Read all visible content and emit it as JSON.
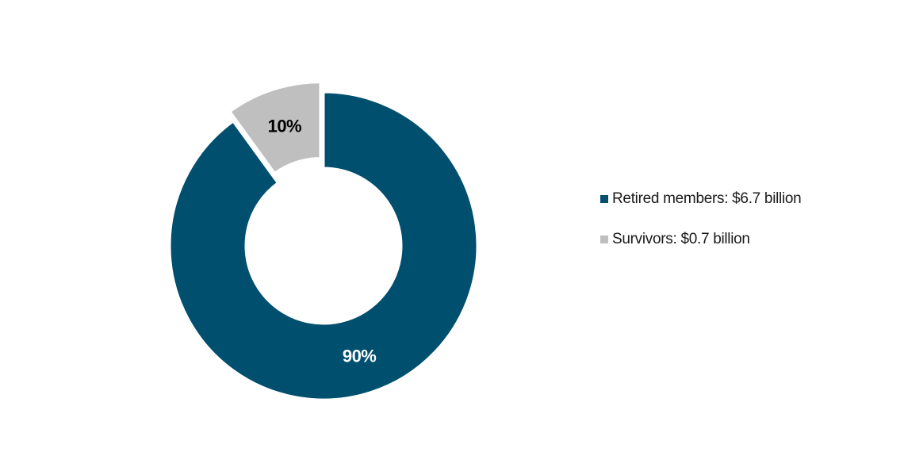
{
  "chart_data": {
    "type": "pie",
    "title": "",
    "series": [
      {
        "name": "Retired members: $6.7 billion",
        "value": 90,
        "label": "90%",
        "color": "#004f6e",
        "label_color": "#ffffff",
        "exploded": false
      },
      {
        "name": "Survivors: $0.7 billion",
        "value": 10,
        "label": "10%",
        "color": "#bfbfbf",
        "label_color": "#000000",
        "exploded": true
      }
    ],
    "donut": true,
    "legend_position": "right"
  }
}
